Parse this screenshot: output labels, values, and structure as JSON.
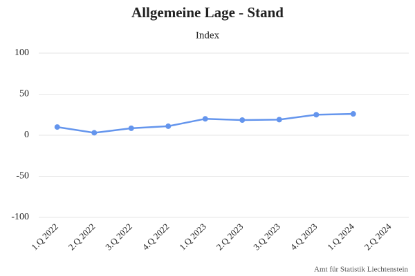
{
  "chart_data": {
    "type": "line",
    "title": "Allgemeine Lage - Stand",
    "subtitle": "Index",
    "credit": "Amt für Statistik Liechtenstein",
    "categories": [
      "1.Q 2022",
      "2.Q 2022",
      "3.Q 2022",
      "4.Q 2022",
      "1.Q 2023",
      "2.Q 2023",
      "3.Q 2023",
      "4.Q 2023",
      "1.Q 2024",
      "2.Q 2024"
    ],
    "values": [
      10,
      3,
      8.5,
      11,
      20,
      18.5,
      19,
      25,
      26,
      null
    ],
    "color": "#6495ed",
    "ylim": [
      -100,
      100
    ],
    "yticks": [
      -100,
      -50,
      0,
      50,
      100
    ],
    "grid": true
  }
}
